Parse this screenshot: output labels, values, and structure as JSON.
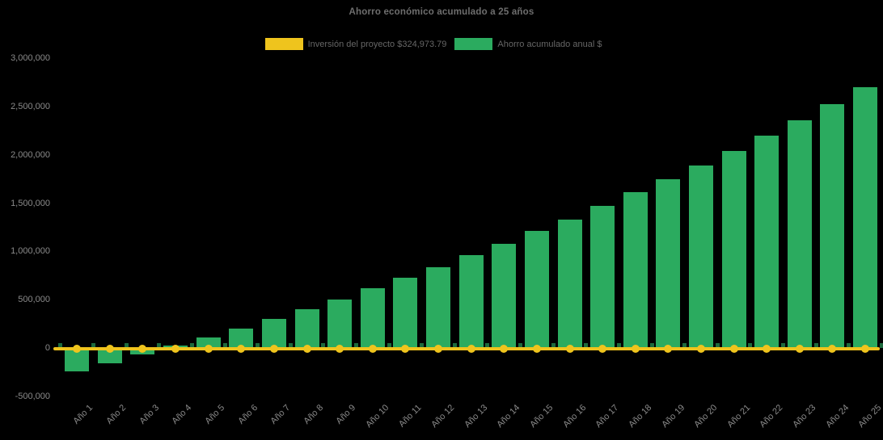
{
  "title": "Ahorro económico acumulado a 25 años",
  "legend": {
    "items": [
      {
        "label": "Inversión del proyecto $324,973.79",
        "color": "#efc41d",
        "series_type": "line"
      },
      {
        "label": "Ahorro acumulado anual $",
        "color": "#2bab5f",
        "series_type": "bar"
      }
    ]
  },
  "chart_data": {
    "type": "bar",
    "title": "Ahorro económico acumulado a 25 años",
    "xlabel": "",
    "ylabel": "",
    "grid": false,
    "legend_position": "top",
    "background": "#000000",
    "ylim": [
      -500000,
      3000000
    ],
    "yticks": [
      -500000,
      0,
      500000,
      1000000,
      1500000,
      2000000,
      2500000,
      3000000
    ],
    "categories": [
      "Año 1",
      "Año 2",
      "Año 3",
      "Año 4",
      "Año 5",
      "Año 6",
      "Año 7",
      "Año 8",
      "Año 9",
      "Año 10",
      "Año 11",
      "Año 12",
      "Año 13",
      "Año 14",
      "Año 15",
      "Año 16",
      "Año 17",
      "Año 18",
      "Año 19",
      "Año 20",
      "Año 21",
      "Año 22",
      "Año 23",
      "Año 24",
      "Año 25"
    ],
    "series": [
      {
        "name": "Inversión del proyecto $324,973.79",
        "type": "line",
        "marker": "circle",
        "color": "#efc41d",
        "values": [
          0,
          0,
          0,
          0,
          0,
          0,
          0,
          0,
          0,
          0,
          0,
          0,
          0,
          0,
          0,
          0,
          0,
          0,
          0,
          0,
          0,
          0,
          0,
          0,
          0
        ]
      },
      {
        "name": "Ahorro acumulado anual $",
        "type": "bar",
        "color": "#2bab5f",
        "values": [
          -240000,
          -160000,
          -70000,
          30000,
          110000,
          200000,
          300000,
          405000,
          505000,
          620000,
          730000,
          840000,
          960000,
          1080000,
          1210000,
          1330000,
          1470000,
          1610000,
          1750000,
          1890000,
          2040000,
          2200000,
          2360000,
          2520000,
          2700000
        ]
      }
    ]
  },
  "colors": {
    "background": "#000000",
    "title_text": "#6e6e6e",
    "legend_text": "#666666",
    "axis_text": "#8a8a8a",
    "bar_green": "#2bab5f",
    "line_yellow": "#efc41d",
    "axis_tick": "#1d6a3d"
  }
}
